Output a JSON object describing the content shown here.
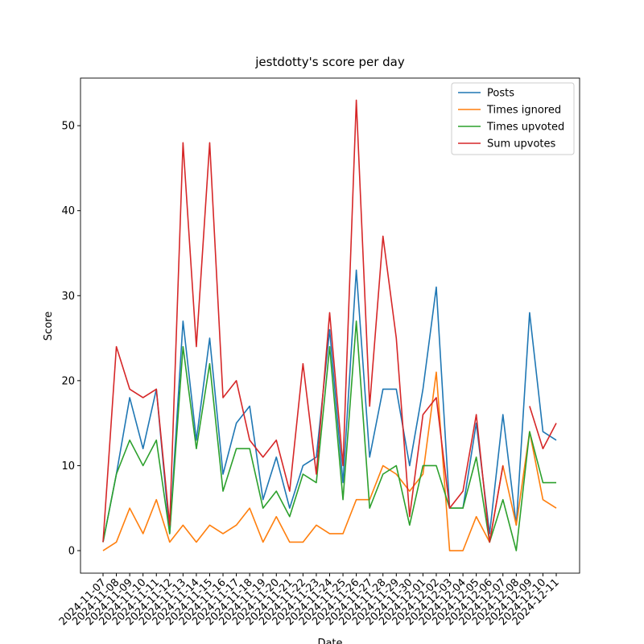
{
  "chart_data": {
    "type": "line",
    "title": "jestdotty's score per day",
    "xlabel": "Date",
    "ylabel": "Score",
    "categories": [
      "2024-11-07",
      "2024-11-08",
      "2024-11-09",
      "2024-11-10",
      "2024-11-11",
      "2024-11-12",
      "2024-11-13",
      "2024-11-14",
      "2024-11-15",
      "2024-11-16",
      "2024-11-17",
      "2024-11-18",
      "2024-11-19",
      "2024-11-20",
      "2024-11-21",
      "2024-11-22",
      "2024-11-23",
      "2024-11-24",
      "2024-11-25",
      "2024-11-26",
      "2024-11-27",
      "2024-11-28",
      "2024-11-29",
      "2024-11-30",
      "2024-12-01",
      "2024-12-02",
      "2024-12-03",
      "2024-12-04",
      "2024-12-05",
      "2024-12-06",
      "2024-12-07",
      "2024-12-08",
      "2024-12-09",
      "2024-12-10",
      "2024-12-11"
    ],
    "series": [
      {
        "name": "Posts",
        "color": "#1f77b4",
        "values": [
          1,
          9,
          18,
          12,
          19,
          2,
          27,
          13,
          25,
          9,
          15,
          17,
          6,
          11,
          5,
          10,
          11,
          26,
          8,
          33,
          11,
          19,
          19,
          10,
          19,
          31,
          5,
          5,
          15,
          2,
          16,
          3,
          28,
          14,
          13
        ]
      },
      {
        "name": "Times ignored",
        "color": "#ff7f0e",
        "values": [
          0,
          1,
          5,
          2,
          6,
          1,
          3,
          1,
          3,
          2,
          3,
          5,
          1,
          4,
          1,
          1,
          3,
          2,
          2,
          6,
          6,
          10,
          9,
          7,
          9,
          21,
          0,
          0,
          4,
          1,
          10,
          3,
          14,
          6,
          5
        ]
      },
      {
        "name": "Times upvoted",
        "color": "#2ca02c",
        "values": [
          1,
          9,
          13,
          10,
          13,
          2,
          24,
          12,
          22,
          7,
          12,
          12,
          5,
          7,
          4,
          9,
          8,
          24,
          6,
          27,
          5,
          9,
          10,
          3,
          10,
          10,
          5,
          5,
          11,
          1,
          6,
          0,
          14,
          8,
          8
        ]
      },
      {
        "name": "Sum upvotes",
        "color": "#d62728",
        "values": [
          1,
          24,
          19,
          18,
          19,
          3,
          48,
          24,
          48,
          18,
          20,
          13,
          11,
          13,
          7,
          22,
          9,
          28,
          10,
          53,
          17,
          37,
          25,
          4,
          16,
          18,
          5,
          7,
          16,
          1,
          10,
          null,
          17,
          12,
          15
        ]
      }
    ],
    "ylim": [
      -2.65,
      55.6
    ],
    "yticks": [
      0,
      10,
      20,
      30,
      40,
      50
    ],
    "legend": "upper right"
  }
}
